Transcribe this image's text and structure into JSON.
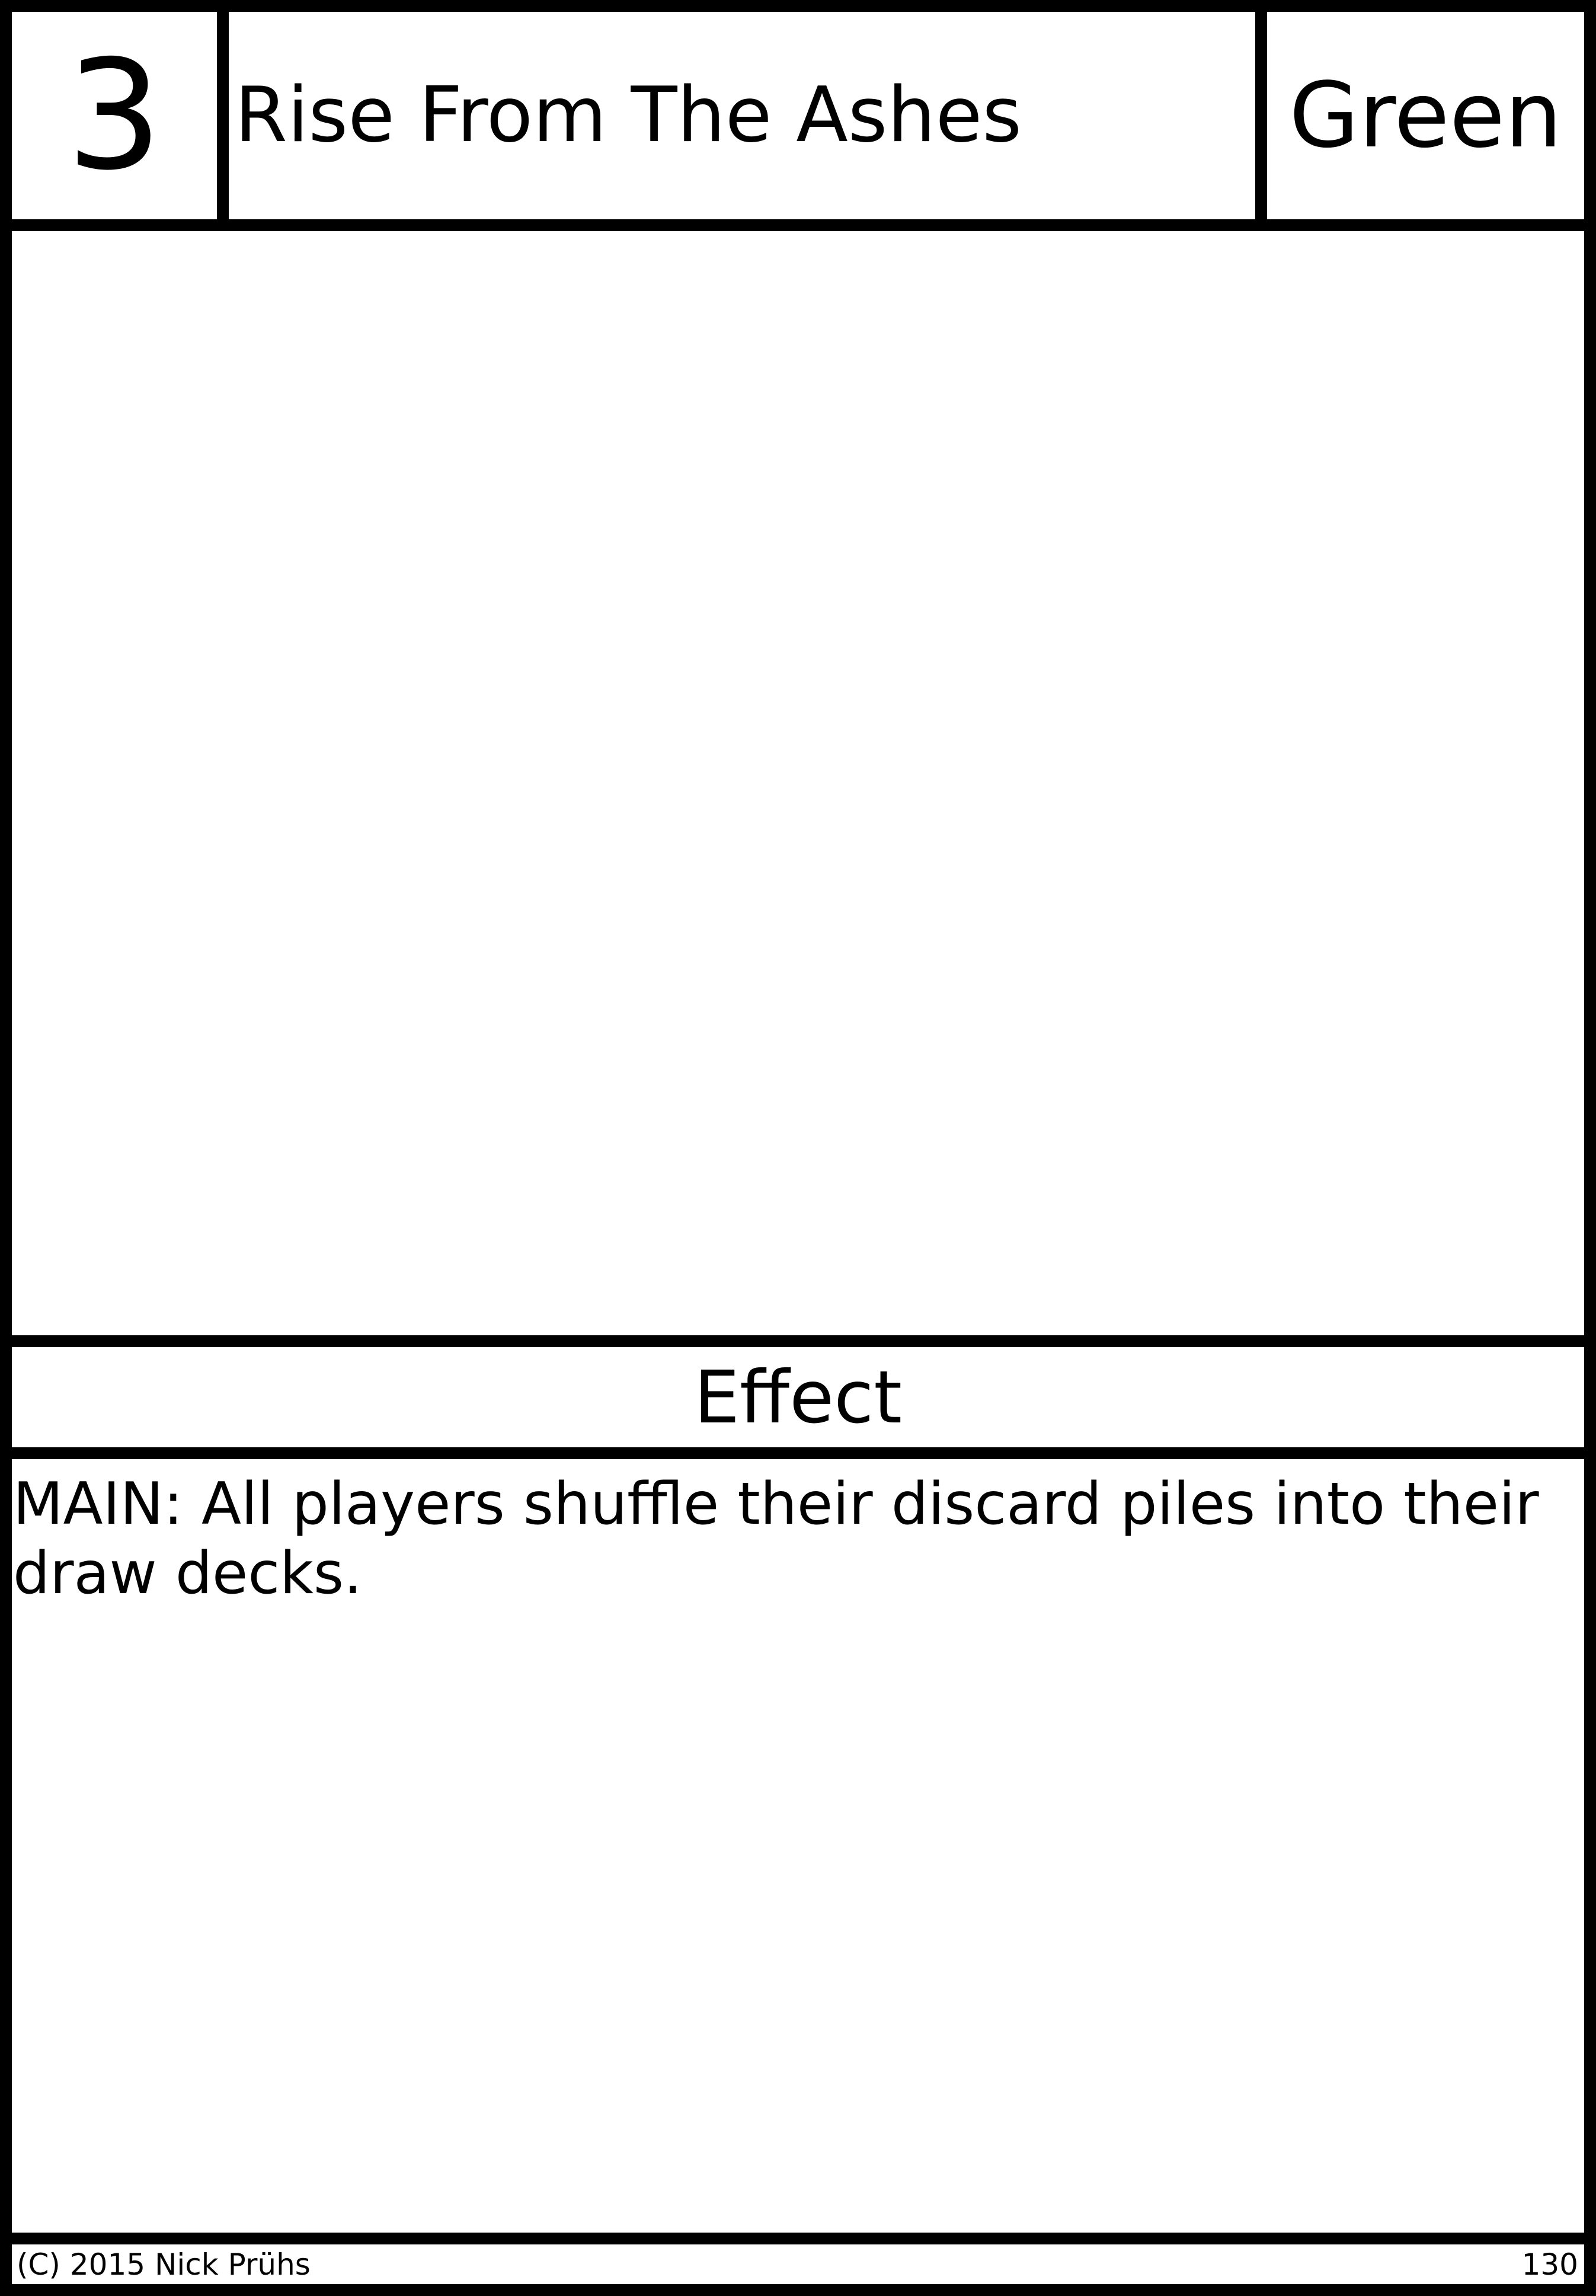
{
  "card": {
    "cost": "3",
    "name": "Rise From The Ashes",
    "color": "Green",
    "section_label": "Effect",
    "effect_text": "MAIN: All players shuffle their discard piles into their draw decks.",
    "copyright": "(C) 2015 Nick Prühs",
    "number": "130"
  },
  "colors": {
    "border": "#000000",
    "background": "#ffffff",
    "text": "#000000"
  }
}
